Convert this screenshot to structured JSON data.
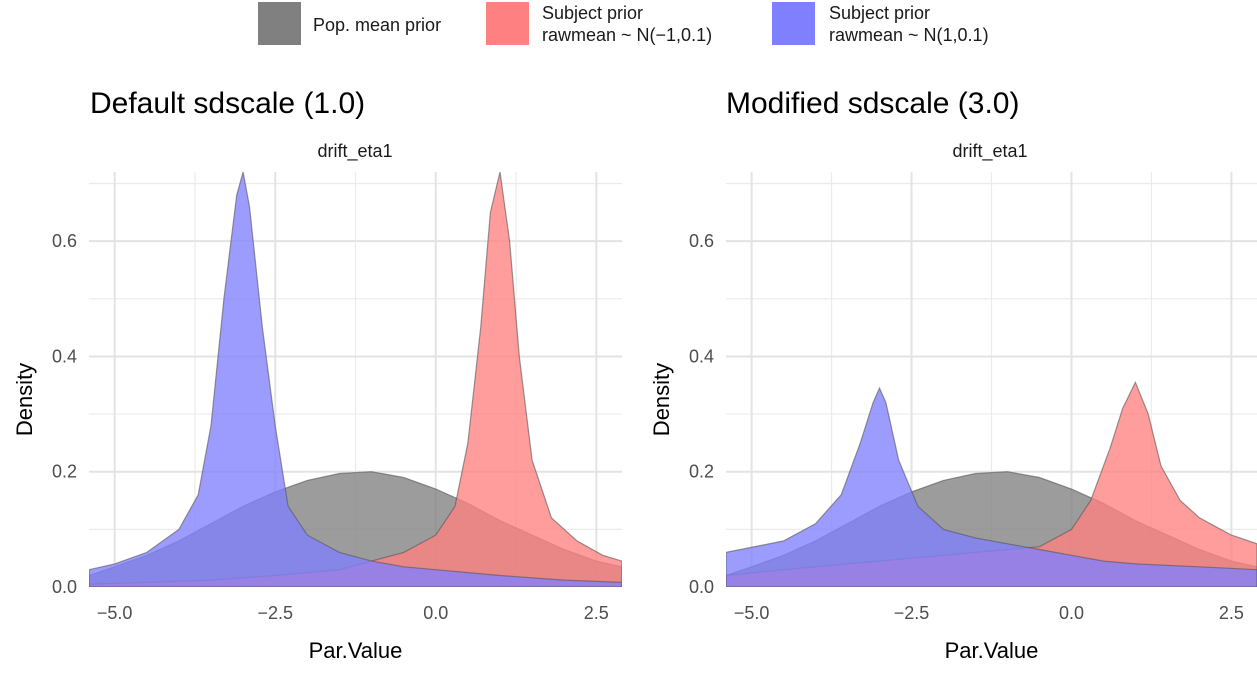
{
  "legend": {
    "position": "top",
    "items": [
      {
        "name": "Pop. mean prior",
        "color": "#808080"
      },
      {
        "name": "Subject prior\nrawmean ~ N(−1,0.1)",
        "color": "#ff8080"
      },
      {
        "name": "Subject prior\nrawmean ~ N(1,0.1)",
        "color": "#8080ff"
      }
    ]
  },
  "chart_data": [
    {
      "type": "area",
      "title": "Default sdscale (1.0)",
      "facet_label": "drift_eta1",
      "xlabel": "Par.Value",
      "ylabel": "Density",
      "xlim": [
        -5.4,
        2.9
      ],
      "ylim": [
        0,
        0.72
      ],
      "xticks": [
        -5.0,
        -2.5,
        0.0,
        2.5
      ],
      "xtick_labels": [
        "−5.0",
        "−2.5",
        "0.0",
        "2.5"
      ],
      "yticks": [
        0.0,
        0.2,
        0.4,
        0.6
      ],
      "ytick_labels": [
        "0.0",
        "0.2",
        "0.4",
        "0.6"
      ],
      "grid": true,
      "series": [
        {
          "name": "Pop. mean prior",
          "color": "#808080",
          "x": [
            -5.4,
            -5.0,
            -4.5,
            -4.0,
            -3.5,
            -3.0,
            -2.5,
            -2.0,
            -1.5,
            -1.0,
            -0.5,
            0.0,
            0.5,
            1.0,
            1.5,
            2.0,
            2.5,
            2.9
          ],
          "values": [
            0.02,
            0.035,
            0.055,
            0.08,
            0.11,
            0.14,
            0.165,
            0.185,
            0.197,
            0.2,
            0.19,
            0.17,
            0.145,
            0.115,
            0.09,
            0.065,
            0.045,
            0.035
          ]
        },
        {
          "name": "Subject prior rawmean ~ N(−1,0.1)",
          "color": "#ff8080",
          "x": [
            -5.4,
            -4.5,
            -3.5,
            -2.5,
            -1.5,
            -1.0,
            -0.5,
            0.0,
            0.3,
            0.5,
            0.7,
            0.85,
            1.0,
            1.15,
            1.3,
            1.5,
            1.8,
            2.2,
            2.6,
            2.9
          ],
          "values": [
            0.005,
            0.008,
            0.012,
            0.02,
            0.03,
            0.045,
            0.06,
            0.09,
            0.14,
            0.25,
            0.45,
            0.65,
            0.72,
            0.6,
            0.4,
            0.22,
            0.12,
            0.08,
            0.055,
            0.045
          ]
        },
        {
          "name": "Subject prior rawmean ~ N(1,0.1)",
          "color": "#8080ff",
          "x": [
            -5.4,
            -5.0,
            -4.5,
            -4.0,
            -3.7,
            -3.5,
            -3.3,
            -3.1,
            -3.0,
            -2.9,
            -2.7,
            -2.5,
            -2.3,
            -2.0,
            -1.5,
            -1.0,
            -0.5,
            0.0,
            1.0,
            2.0,
            2.9
          ],
          "values": [
            0.03,
            0.04,
            0.06,
            0.1,
            0.16,
            0.28,
            0.5,
            0.68,
            0.72,
            0.66,
            0.45,
            0.28,
            0.14,
            0.09,
            0.06,
            0.045,
            0.035,
            0.03,
            0.02,
            0.012,
            0.008
          ]
        }
      ]
    },
    {
      "type": "area",
      "title": "Modified sdscale (3.0)",
      "facet_label": "drift_eta1",
      "xlabel": "Par.Value",
      "ylabel": "Density",
      "xlim": [
        -5.4,
        2.9
      ],
      "ylim": [
        0,
        0.72
      ],
      "xticks": [
        -5.0,
        -2.5,
        0.0,
        2.5
      ],
      "xtick_labels": [
        "−5.0",
        "−2.5",
        "0.0",
        "2.5"
      ],
      "yticks": [
        0.0,
        0.2,
        0.4,
        0.6
      ],
      "ytick_labels": [
        "0.0",
        "0.2",
        "0.4",
        "0.6"
      ],
      "grid": true,
      "series": [
        {
          "name": "Pop. mean prior",
          "color": "#808080",
          "x": [
            -5.4,
            -5.0,
            -4.5,
            -4.0,
            -3.5,
            -3.0,
            -2.5,
            -2.0,
            -1.5,
            -1.0,
            -0.5,
            0.0,
            0.5,
            1.0,
            1.5,
            2.0,
            2.5,
            2.9
          ],
          "values": [
            0.02,
            0.035,
            0.055,
            0.08,
            0.11,
            0.14,
            0.165,
            0.185,
            0.197,
            0.2,
            0.19,
            0.17,
            0.145,
            0.115,
            0.09,
            0.065,
            0.045,
            0.035
          ]
        },
        {
          "name": "Subject prior rawmean ~ N(−1,0.1)",
          "color": "#ff8080",
          "x": [
            -5.4,
            -4.5,
            -3.5,
            -2.5,
            -1.5,
            -1.0,
            -0.5,
            0.0,
            0.3,
            0.6,
            0.8,
            1.0,
            1.2,
            1.4,
            1.7,
            2.0,
            2.5,
            2.9
          ],
          "values": [
            0.02,
            0.03,
            0.04,
            0.05,
            0.06,
            0.065,
            0.07,
            0.1,
            0.15,
            0.24,
            0.31,
            0.355,
            0.3,
            0.21,
            0.15,
            0.12,
            0.09,
            0.075
          ]
        },
        {
          "name": "Subject prior rawmean ~ N(1,0.1)",
          "color": "#8080ff",
          "x": [
            -5.4,
            -4.5,
            -4.0,
            -3.6,
            -3.3,
            -3.1,
            -3.0,
            -2.9,
            -2.7,
            -2.4,
            -2.0,
            -1.5,
            -1.0,
            -0.5,
            0.0,
            0.5,
            1.0,
            2.0,
            2.9
          ],
          "values": [
            0.06,
            0.08,
            0.11,
            0.16,
            0.25,
            0.32,
            0.345,
            0.32,
            0.22,
            0.14,
            0.1,
            0.085,
            0.075,
            0.065,
            0.055,
            0.045,
            0.04,
            0.035,
            0.03
          ]
        }
      ]
    }
  ]
}
